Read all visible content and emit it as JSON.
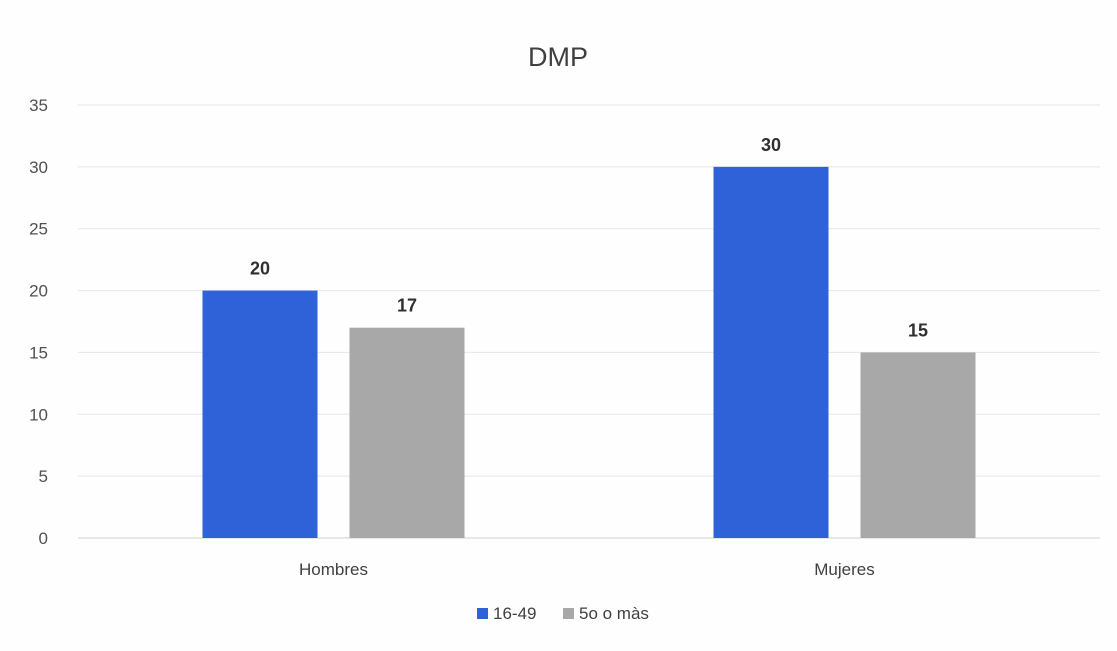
{
  "chart_data": {
    "type": "bar",
    "title": "DMP",
    "categories": [
      "Hombres",
      "Mujeres"
    ],
    "series": [
      {
        "name": "16-49",
        "values": [
          20,
          30
        ],
        "color": "#2f62d9"
      },
      {
        "name": "5o o màs",
        "values": [
          17,
          15
        ],
        "color": "#a8a8a8"
      }
    ],
    "ylim": [
      0,
      35
    ],
    "yticks": [
      0,
      5,
      10,
      15,
      20,
      25,
      30,
      35
    ],
    "grid": true,
    "legend": "bottom",
    "data_labels": true
  }
}
